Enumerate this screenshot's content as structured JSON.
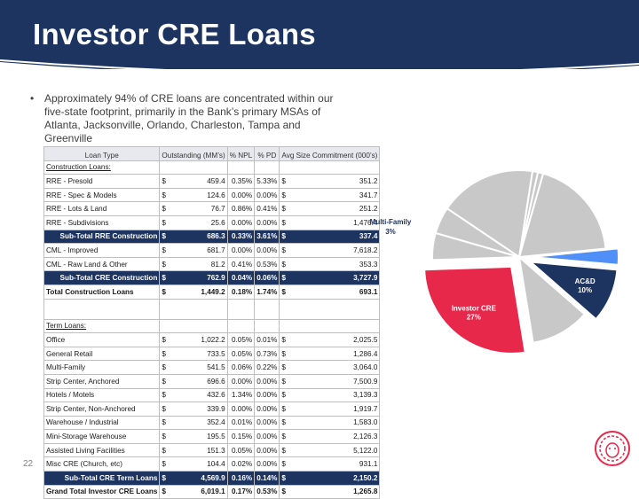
{
  "slide": {
    "title": "Investor CRE Loans",
    "bullet": "Approximately 94% of CRE loans are concentrated within our five-state footprint, primarily in the Bank’s primary MSAs of Atlanta, Jacksonville, Orlando, Charleston, Tampa and Greenville",
    "page_number": "22"
  },
  "table": {
    "headers": {
      "loan_type": "Loan Type",
      "outstanding": "Outstanding (MM’s)",
      "npl": "% NPL",
      "pd": "% PD",
      "avg_size": "Avg Size Commitment (000’s)"
    },
    "dollar": "$",
    "rows": [
      {
        "type": "Construction Loans:",
        "kind": "section"
      },
      {
        "type": "RRE - Presold",
        "amt": "459.4",
        "npl": "0.35%",
        "pd": "5.33%",
        "avg": "351.2"
      },
      {
        "type": "RRE - Spec & Models",
        "amt": "124.6",
        "npl": "0.00%",
        "pd": "0.00%",
        "avg": "341.7"
      },
      {
        "type": "RRE - Lots & Land",
        "amt": "76.7",
        "npl": "0.86%",
        "pd": "0.41%",
        "avg": "251.2"
      },
      {
        "type": "RRE - Subdivisions",
        "amt": "25.6",
        "npl": "0.00%",
        "pd": "0.00%",
        "avg": "1,476.4"
      },
      {
        "type": "Sub-Total RRE Construction",
        "amt": "686.3",
        "npl": "0.33%",
        "pd": "3.61%",
        "avg": "337.4",
        "kind": "subtotal"
      },
      {
        "type": "CML - Improved",
        "amt": "681.7",
        "npl": "0.00%",
        "pd": "0.00%",
        "avg": "7,618.2"
      },
      {
        "type": "CML - Raw Land & Other",
        "amt": "81.2",
        "npl": "0.41%",
        "pd": "0.53%",
        "avg": "353.3"
      },
      {
        "type": "Sub-Total CRE Construction",
        "amt": "762.9",
        "npl": "0.04%",
        "pd": "0.06%",
        "avg": "3,727.9",
        "kind": "subtotal"
      },
      {
        "type": "Total Construction Loans",
        "amt": "1,449.2",
        "npl": "0.18%",
        "pd": "1.74%",
        "avg": "693.1",
        "kind": "total"
      },
      {
        "type": "",
        "kind": "blank"
      },
      {
        "type": "Term Loans:",
        "kind": "section"
      },
      {
        "type": "Office",
        "amt": "1,022.2",
        "npl": "0.05%",
        "pd": "0.01%",
        "avg": "2,025.5"
      },
      {
        "type": "General Retail",
        "amt": "733.5",
        "npl": "0.05%",
        "pd": "0.73%",
        "avg": "1,286.4"
      },
      {
        "type": "Multi-Family",
        "amt": "541.5",
        "npl": "0.06%",
        "pd": "0.22%",
        "avg": "3,064.0"
      },
      {
        "type": "Strip Center, Anchored",
        "amt": "696.6",
        "npl": "0.00%",
        "pd": "0.00%",
        "avg": "7,500.9"
      },
      {
        "type": "Hotels / Motels",
        "amt": "432.6",
        "npl": "1.34%",
        "pd": "0.00%",
        "avg": "3,139.3"
      },
      {
        "type": "Strip Center, Non-Anchored",
        "amt": "339.9",
        "npl": "0.00%",
        "pd": "0.00%",
        "avg": "1,919.7"
      },
      {
        "type": "Warehouse / Industrial",
        "amt": "352.4",
        "npl": "0.01%",
        "pd": "0.00%",
        "avg": "1,583.0"
      },
      {
        "type": "Mini-Storage Warehouse",
        "amt": "195.5",
        "npl": "0.15%",
        "pd": "0.00%",
        "avg": "2,126.3"
      },
      {
        "type": "Assisted Living Facilities",
        "amt": "151.3",
        "npl": "0.05%",
        "pd": "0.00%",
        "avg": "5,122.0"
      },
      {
        "type": "Misc CRE (Church, etc)",
        "amt": "104.4",
        "npl": "0.02%",
        "pd": "0.00%",
        "avg": "931.1"
      },
      {
        "type": "Sub-Total CRE Term Loans",
        "amt": "4,569.9",
        "npl": "0.16%",
        "pd": "0.14%",
        "avg": "2,150.2",
        "kind": "subtotal"
      },
      {
        "type": "Grand Total Investor CRE Loans",
        "amt": "6,019.1",
        "npl": "0.17%",
        "pd": "0.53%",
        "avg": "1,265.8",
        "kind": "total"
      }
    ]
  },
  "chart_data": {
    "type": "pie",
    "slices": [
      {
        "label": "Investor CRE",
        "value": 27,
        "pct_text": "27%",
        "color": "#e8284b",
        "exploded": true,
        "labelled": true
      },
      {
        "label": "",
        "value": 11,
        "color": "#c8c8c8"
      },
      {
        "label": "AC&D",
        "value": 10,
        "pct_text": "10%",
        "color": "#1d3461",
        "exploded": true,
        "labelled": true
      },
      {
        "label": "Multi-Family",
        "value": 3,
        "pct_text": "3%",
        "color": "#4f8ff7",
        "exploded": true,
        "labelled": true
      },
      {
        "label": "",
        "value": 19,
        "color": "#c8c8c8"
      },
      {
        "label": "",
        "value": 1,
        "color": "#c8c8c8"
      },
      {
        "label": "",
        "value": 1,
        "color": "#c8c8c8"
      },
      {
        "label": "",
        "value": 18,
        "color": "#c8c8c8"
      },
      {
        "label": "",
        "value": 5,
        "color": "#c8c8c8"
      },
      {
        "label": "",
        "value": 5,
        "color": "#c8c8c8"
      }
    ],
    "colors": {
      "highlight": "#e8284b",
      "navy": "#1d3461",
      "blue": "#4f8ff7",
      "gray": "#c8c8c8"
    }
  }
}
